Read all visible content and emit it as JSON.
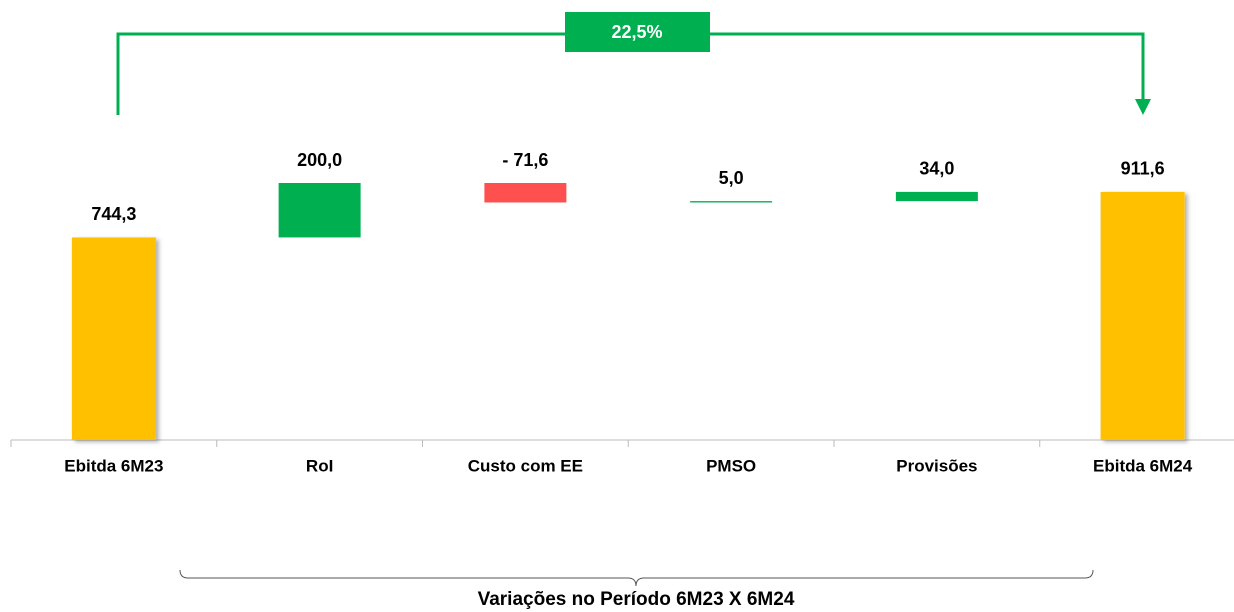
{
  "chart_data": {
    "type": "waterfall",
    "categories": [
      "Ebitda 6M23",
      "RoI",
      "Custo com EE",
      "PMSO",
      "Provisões",
      "Ebitda 6M24"
    ],
    "values": [
      744.3,
      200.0,
      -71.6,
      5.0,
      34.0,
      911.6
    ],
    "value_labels": [
      "744,3",
      "200,0",
      "- 71,6",
      "5,0",
      "34,0",
      "911,6"
    ],
    "totals": [
      true,
      false,
      false,
      false,
      false,
      true
    ],
    "colors": {
      "total": "#FFC000",
      "increase": "#00B050",
      "decrease": "#FF5050"
    },
    "annotation": "22,5%",
    "bracket_label": "Variações no Período  6M23 X 6M24"
  }
}
